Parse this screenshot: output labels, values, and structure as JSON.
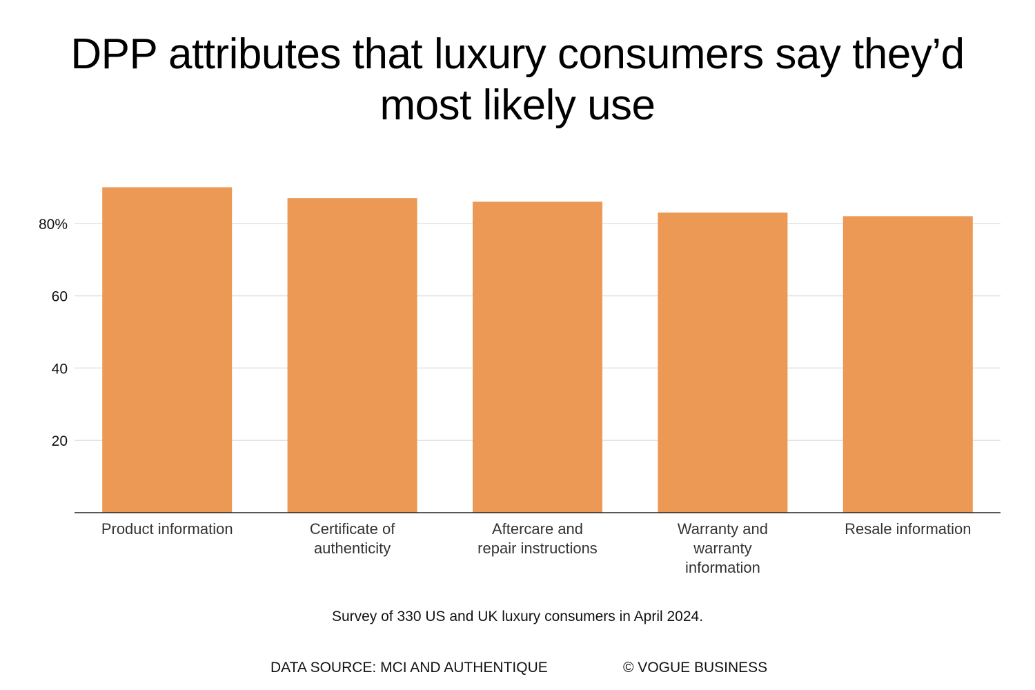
{
  "chart_data": {
    "type": "bar",
    "title": "DPP attributes that luxury consumers say they’d most likely use",
    "categories": [
      "Product information",
      "Certificate of authenticity",
      "Aftercare and repair instructions",
      "Warranty and warranty information",
      "Resale information"
    ],
    "category_lines": [
      [
        "Product information"
      ],
      [
        "Certificate of",
        "authenticity"
      ],
      [
        "Aftercare and",
        "repair instructions"
      ],
      [
        "Warranty and",
        "warranty",
        "information"
      ],
      [
        "Resale information"
      ]
    ],
    "values": [
      90,
      87,
      86,
      83,
      82
    ],
    "ylim": [
      0,
      100
    ],
    "yticks": [
      20,
      40,
      60,
      80
    ],
    "ytick_labels": [
      "20",
      "40",
      "60",
      "80%"
    ],
    "grid": true,
    "bar_color": "#EB9955",
    "xlabel": "",
    "ylabel": ""
  },
  "footer": {
    "note": "Survey of 330 US and UK luxury consumers in April 2024.",
    "source": "DATA SOURCE: MCI AND AUTHENTIQUE",
    "credit": "© VOGUE BUSINESS"
  }
}
